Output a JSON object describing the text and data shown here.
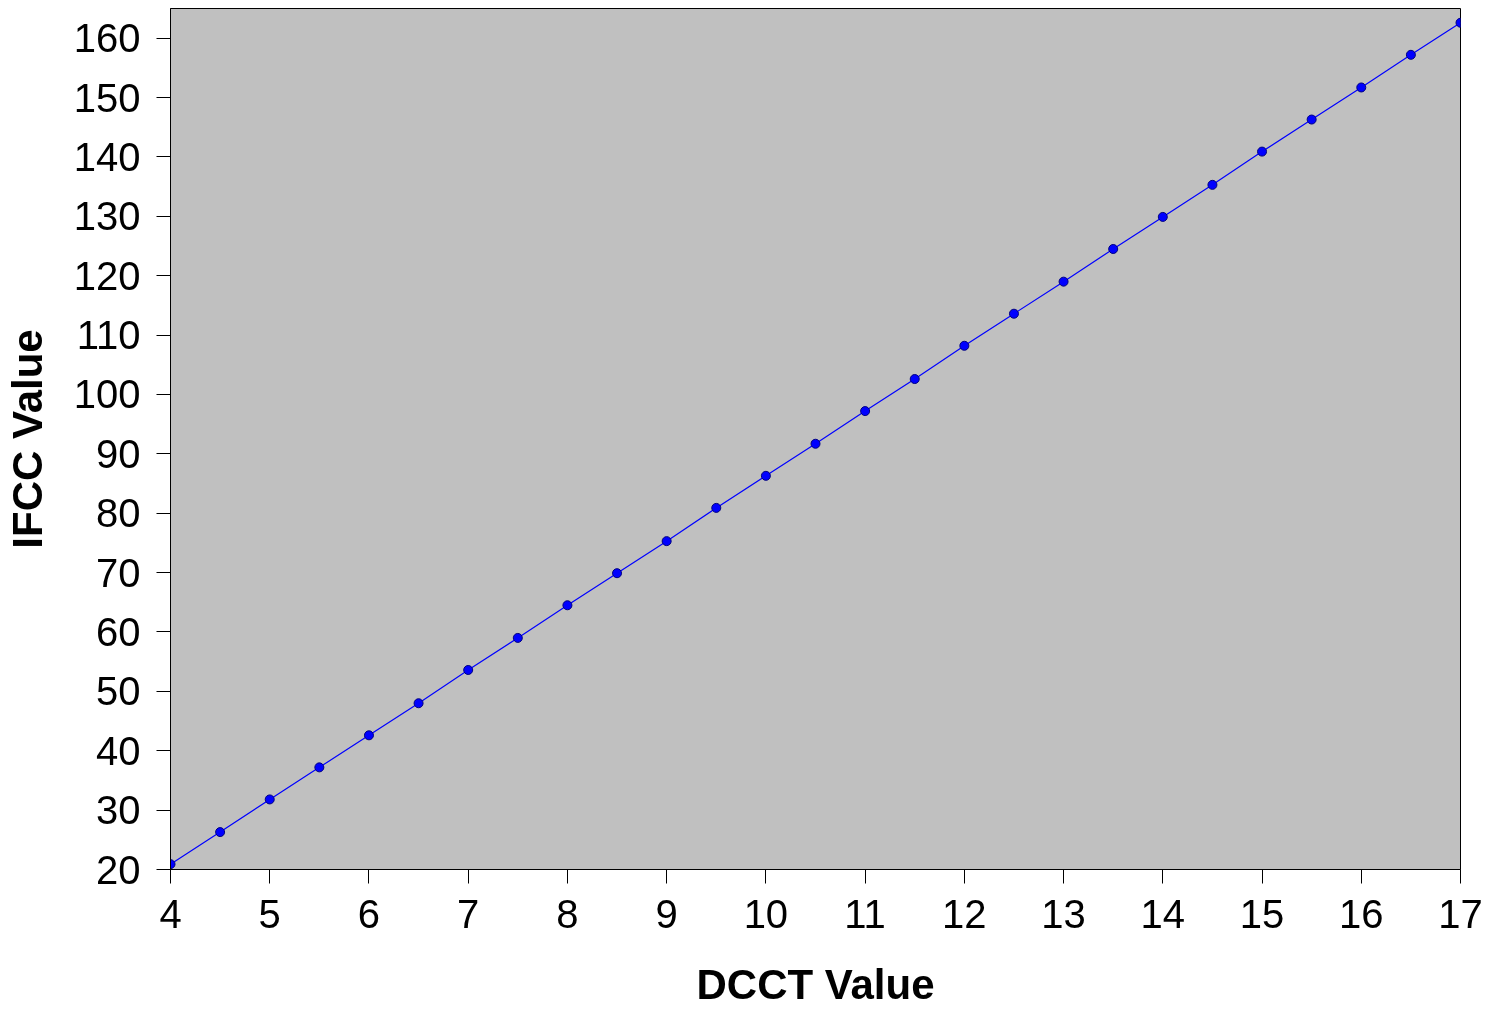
{
  "chart_data": {
    "type": "line",
    "xlabel": "DCCT Value",
    "ylabel": "IFCC Value",
    "x": [
      4,
      4.5,
      5,
      5.5,
      6,
      6.5,
      7,
      7.5,
      8,
      8.5,
      9,
      9.5,
      10,
      10.5,
      11,
      11.5,
      12,
      12.5,
      13,
      13.5,
      14,
      14.5,
      15,
      15.5,
      16,
      16.5,
      17
    ],
    "series": [
      {
        "color": "#0000ff",
        "values": [
          20.9,
          26.3,
          31.8,
          37.2,
          42.6,
          48.0,
          53.6,
          59.0,
          64.5,
          69.9,
          75.3,
          80.9,
          86.3,
          91.7,
          97.2,
          102.6,
          108.2,
          113.6,
          119.0,
          124.5,
          129.9,
          135.3,
          140.9,
          146.3,
          151.7,
          157.2,
          162.6
        ]
      }
    ],
    "xlim": [
      4,
      17
    ],
    "xticks": [
      4,
      5,
      6,
      7,
      8,
      9,
      10,
      11,
      12,
      13,
      14,
      15,
      16,
      17
    ],
    "ylim": [
      20,
      165
    ],
    "yticks": [
      20,
      30,
      40,
      50,
      60,
      70,
      80,
      90,
      100,
      110,
      120,
      130,
      140,
      150,
      160
    ],
    "marker": "circle",
    "line_style": "solid",
    "grid": false
  }
}
